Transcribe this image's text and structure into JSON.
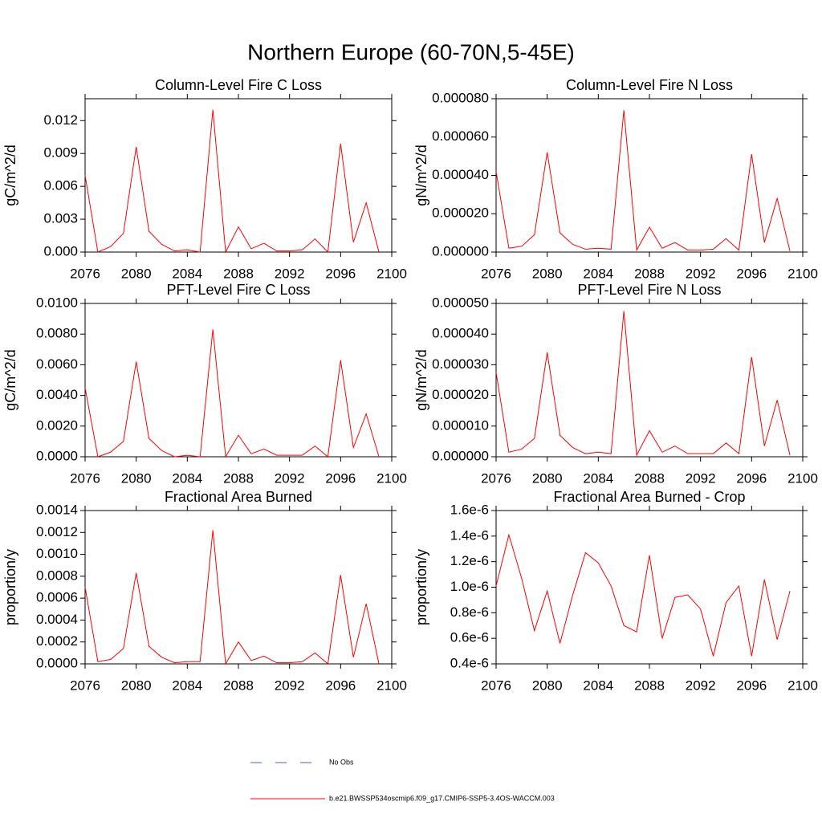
{
  "title": "Northern Europe (60-70N,5-45E)",
  "legend": [
    {
      "name": "No Obs",
      "color": "#4a5fd0",
      "dash": true
    },
    {
      "name": "b.e21.BWSSP534oscmip6.f09_g17.CMIP6-SSP5-3.4OS-WACCM.003",
      "color": "#ff0000",
      "dash": false
    }
  ],
  "chart_data": [
    {
      "type": "line",
      "title": "Column-Level Fire C Loss",
      "y_label": "gC/m^2/d",
      "color": "#ff0000",
      "x": [
        2076,
        2077,
        2078,
        2079,
        2080,
        2081,
        2082,
        2083,
        2084,
        2085,
        2086,
        2087,
        2088,
        2089,
        2090,
        2091,
        2092,
        2093,
        2094,
        2095,
        2096,
        2097,
        2098,
        2099
      ],
      "values": [
        0.007,
        0.0,
        0.0005,
        0.0017,
        0.0096,
        0.0019,
        0.0007,
        0.0001,
        0.0002,
        0.0,
        0.013,
        0.0,
        0.0023,
        0.0003,
        0.0008,
        0.0001,
        0.0001,
        0.0002,
        0.0012,
        0.0,
        0.0099,
        0.0009,
        0.0045,
        0.0
      ],
      "xlim": [
        2076,
        2100
      ],
      "xticks": [
        2076,
        2080,
        2084,
        2088,
        2092,
        2096,
        2100
      ],
      "ylim": [
        0,
        0.014
      ],
      "yticks": [
        {
          "value": 0,
          "label": "0.000"
        },
        {
          "value": 0.003,
          "label": "0.003"
        },
        {
          "value": 0.006,
          "label": "0.006"
        },
        {
          "value": 0.009,
          "label": "0.009"
        },
        {
          "value": 0.012,
          "label": "0.012"
        }
      ]
    },
    {
      "type": "line",
      "title": "Column-Level Fire N Loss",
      "y_label": "gN/m^2/d",
      "color": "#ff0000",
      "x": [
        2076,
        2077,
        2078,
        2079,
        2080,
        2081,
        2082,
        2083,
        2084,
        2085,
        2086,
        2087,
        2088,
        2089,
        2090,
        2091,
        2092,
        2093,
        2094,
        2095,
        2096,
        2097,
        2098,
        2099
      ],
      "values": [
        4.2e-05,
        2e-06,
        3e-06,
        9e-06,
        5.2e-05,
        1e-05,
        4e-06,
        1.5e-06,
        2e-06,
        1.5e-06,
        7.4e-05,
        1e-06,
        1.3e-05,
        2e-06,
        5e-06,
        1e-06,
        1e-06,
        1.5e-06,
        7e-06,
        1e-06,
        5.1e-05,
        5e-06,
        2.8e-05,
        5e-07
      ],
      "xlim": [
        2076,
        2100
      ],
      "xticks": [
        2076,
        2080,
        2084,
        2088,
        2092,
        2096,
        2100
      ],
      "ylim": [
        0,
        8e-05
      ],
      "yticks": [
        {
          "value": 0,
          "label": "0.000000"
        },
        {
          "value": 2e-05,
          "label": "0.000020"
        },
        {
          "value": 4e-05,
          "label": "0.000040"
        },
        {
          "value": 6e-05,
          "label": "0.000060"
        },
        {
          "value": 8e-05,
          "label": "0.000080"
        }
      ]
    },
    {
      "type": "line",
      "title": "PFT-Level Fire C Loss",
      "y_label": "gC/m^2/d",
      "color": "#ff0000",
      "x": [
        2076,
        2077,
        2078,
        2079,
        2080,
        2081,
        2082,
        2083,
        2084,
        2085,
        2086,
        2087,
        2088,
        2089,
        2090,
        2091,
        2092,
        2093,
        2094,
        2095,
        2096,
        2097,
        2098,
        2099
      ],
      "values": [
        0.0045,
        0.0,
        0.0003,
        0.001,
        0.0062,
        0.0012,
        0.0004,
        0.0,
        0.0001,
        0.0,
        0.0083,
        0.0,
        0.0014,
        0.0002,
        0.0005,
        0.0001,
        0.0001,
        0.0001,
        0.0007,
        0.0,
        0.0063,
        0.0006,
        0.0028,
        0.0
      ],
      "xlim": [
        2076,
        2100
      ],
      "xticks": [
        2076,
        2080,
        2084,
        2088,
        2092,
        2096,
        2100
      ],
      "ylim": [
        0,
        0.01
      ],
      "yticks": [
        {
          "value": 0,
          "label": "0.0000"
        },
        {
          "value": 0.002,
          "label": "0.0020"
        },
        {
          "value": 0.004,
          "label": "0.0040"
        },
        {
          "value": 0.006,
          "label": "0.0060"
        },
        {
          "value": 0.008,
          "label": "0.0080"
        },
        {
          "value": 0.01,
          "label": "0.0100"
        }
      ]
    },
    {
      "type": "line",
      "title": "PFT-Level Fire N Loss",
      "y_label": "gN/m^2/d",
      "color": "#ff0000",
      "x": [
        2076,
        2077,
        2078,
        2079,
        2080,
        2081,
        2082,
        2083,
        2084,
        2085,
        2086,
        2087,
        2088,
        2089,
        2090,
        2091,
        2092,
        2093,
        2094,
        2095,
        2096,
        2097,
        2098,
        2099
      ],
      "values": [
        2.75e-05,
        1.5e-06,
        2.5e-06,
        6e-06,
        3.4e-05,
        7e-06,
        3e-06,
        1e-06,
        1.5e-06,
        1e-06,
        4.75e-05,
        5e-07,
        8.5e-06,
        1.5e-06,
        3.5e-06,
        1e-06,
        1e-06,
        1e-06,
        4.5e-06,
        1e-06,
        3.25e-05,
        3.5e-06,
        1.85e-05,
        5e-07
      ],
      "xlim": [
        2076,
        2100
      ],
      "xticks": [
        2076,
        2080,
        2084,
        2088,
        2092,
        2096,
        2100
      ],
      "ylim": [
        0,
        5e-05
      ],
      "yticks": [
        {
          "value": 0,
          "label": "0.000000"
        },
        {
          "value": 1e-05,
          "label": "0.000010"
        },
        {
          "value": 2e-05,
          "label": "0.000020"
        },
        {
          "value": 3e-05,
          "label": "0.000030"
        },
        {
          "value": 4e-05,
          "label": "0.000040"
        },
        {
          "value": 5e-05,
          "label": "0.000050"
        }
      ]
    },
    {
      "type": "line",
      "title": "Fractional Area Burned",
      "y_label": "proportion/y",
      "color": "#ff0000",
      "x": [
        2076,
        2077,
        2078,
        2079,
        2080,
        2081,
        2082,
        2083,
        2084,
        2085,
        2086,
        2087,
        2088,
        2089,
        2090,
        2091,
        2092,
        2093,
        2094,
        2095,
        2096,
        2097,
        2098,
        2099
      ],
      "values": [
        0.0007,
        2e-05,
        4e-05,
        0.00014,
        0.00083,
        0.00016,
        6e-05,
        1e-05,
        2e-05,
        2e-05,
        0.00122,
        0.0,
        0.0002,
        3e-05,
        7e-05,
        1e-05,
        1e-05,
        2e-05,
        0.0001,
        0.0,
        0.00081,
        6e-05,
        0.00055,
        0.0
      ],
      "xlim": [
        2076,
        2100
      ],
      "xticks": [
        2076,
        2080,
        2084,
        2088,
        2092,
        2096,
        2100
      ],
      "ylim": [
        0,
        0.0014
      ],
      "yticks": [
        {
          "value": 0,
          "label": "0.0000"
        },
        {
          "value": 0.0002,
          "label": "0.0002"
        },
        {
          "value": 0.0004,
          "label": "0.0004"
        },
        {
          "value": 0.0006,
          "label": "0.0006"
        },
        {
          "value": 0.0008,
          "label": "0.0008"
        },
        {
          "value": 0.001,
          "label": "0.0010"
        },
        {
          "value": 0.0012,
          "label": "0.0012"
        },
        {
          "value": 0.0014,
          "label": "0.0014"
        }
      ]
    },
    {
      "type": "line",
      "title": "Fractional Area Burned - Crop",
      "y_label": "proportion/y",
      "color": "#ff0000",
      "x": [
        2076,
        2077,
        2078,
        2079,
        2080,
        2081,
        2082,
        2083,
        2084,
        2085,
        2086,
        2087,
        2088,
        2089,
        2090,
        2091,
        2092,
        2093,
        2094,
        2095,
        2096,
        2097,
        2098,
        2099
      ],
      "values": [
        1.01e-06,
        1.41e-06,
        1.07e-06,
        6.6e-07,
        9.7e-07,
        5.6e-07,
        9.4e-07,
        1.27e-06,
        1.19e-06,
        1.01e-06,
        7e-07,
        6.5e-07,
        1.25e-06,
        6e-07,
        9.2e-07,
        9.4e-07,
        8.3e-07,
        4.6e-07,
        8.8e-07,
        1.01e-06,
        4.6e-07,
        1.06e-06,
        5.9e-07,
        9.7e-07
      ],
      "xlim": [
        2076,
        2100
      ],
      "xticks": [
        2076,
        2080,
        2084,
        2088,
        2092,
        2096,
        2100
      ],
      "ylim": [
        4e-07,
        1.6e-06
      ],
      "yticks": [
        {
          "value": 4e-07,
          "label": "0.4e-6"
        },
        {
          "value": 6e-07,
          "label": "0.6e-6"
        },
        {
          "value": 8e-07,
          "label": "0.8e-6"
        },
        {
          "value": 1e-06,
          "label": "1.0e-6"
        },
        {
          "value": 1.2e-06,
          "label": "1.2e-6"
        },
        {
          "value": 1.4e-06,
          "label": "1.4e-6"
        },
        {
          "value": 1.6e-06,
          "label": "1.6e-6"
        }
      ]
    }
  ]
}
